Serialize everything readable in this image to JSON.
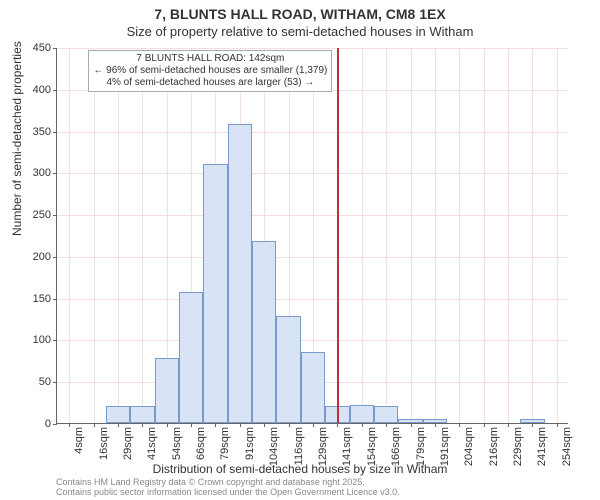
{
  "header": {
    "line1": "7, BLUNTS HALL ROAD, WITHAM, CM8 1EX",
    "line2": "Size of property relative to semi-detached houses in Witham"
  },
  "chart": {
    "type": "histogram",
    "ylabel": "Number of semi-detached properties",
    "xlabel": "Distribution of semi-detached houses by size in Witham",
    "ylim": [
      0,
      450
    ],
    "ytick_step": 50,
    "yticks": [
      0,
      50,
      100,
      150,
      200,
      250,
      300,
      350,
      400,
      450
    ],
    "x_categories": [
      "4sqm",
      "16sqm",
      "29sqm",
      "41sqm",
      "54sqm",
      "66sqm",
      "79sqm",
      "91sqm",
      "104sqm",
      "116sqm",
      "129sqm",
      "141sqm",
      "154sqm",
      "166sqm",
      "179sqm",
      "191sqm",
      "204sqm",
      "216sqm",
      "229sqm",
      "241sqm",
      "254sqm"
    ],
    "values": [
      0,
      0,
      20,
      20,
      78,
      157,
      310,
      358,
      218,
      128,
      85,
      20,
      22,
      20,
      5,
      5,
      0,
      0,
      0,
      5,
      0
    ],
    "bar_color": "#d8e4f5",
    "bar_border_color": "#7a9ac9",
    "bar_width_ratio": 1.0,
    "grid_color": "#f5dede",
    "axis_color": "#666666",
    "background_color": "#ffffff",
    "marker": {
      "position_category_index": 11,
      "color": "#c23030",
      "label_top": "7 BLUNTS HALL ROAD: 142sqm",
      "label_mid_left": "← 96% of semi-detached houses are smaller (1,379)",
      "label_mid_right": "4% of semi-detached houses are larger (53) →"
    }
  },
  "footer": {
    "line1": "Contains HM Land Registry data © Crown copyright and database right 2025.",
    "line2": "Contains public sector information licensed under the Open Government Licence v3.0."
  }
}
